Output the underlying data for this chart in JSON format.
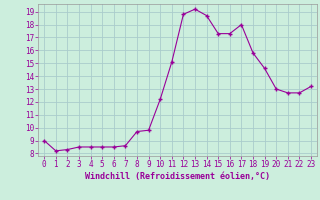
{
  "x": [
    0,
    1,
    2,
    3,
    4,
    5,
    6,
    7,
    8,
    9,
    10,
    11,
    12,
    13,
    14,
    15,
    16,
    17,
    18,
    19,
    20,
    21,
    22,
    23
  ],
  "y": [
    9.0,
    8.2,
    8.3,
    8.5,
    8.5,
    8.5,
    8.5,
    8.6,
    9.7,
    9.8,
    12.2,
    15.1,
    18.8,
    19.2,
    18.7,
    17.3,
    17.3,
    18.0,
    15.8,
    14.6,
    13.0,
    12.7,
    12.7,
    13.2
  ],
  "line_color": "#990099",
  "marker": "+",
  "marker_size": 3,
  "marker_lw": 1.0,
  "bg_color": "#cceedd",
  "grid_color": "#aacccc",
  "xlabel": "Windchill (Refroidissement éolien,°C)",
  "xlabel_color": "#990099",
  "tick_color": "#990099",
  "spine_color": "#999999",
  "xlim_min": -0.5,
  "xlim_max": 23.5,
  "ylim_min": 7.8,
  "ylim_max": 19.6,
  "yticks": [
    8,
    9,
    10,
    11,
    12,
    13,
    14,
    15,
    16,
    17,
    18,
    19
  ],
  "xticks": [
    0,
    1,
    2,
    3,
    4,
    5,
    6,
    7,
    8,
    9,
    10,
    11,
    12,
    13,
    14,
    15,
    16,
    17,
    18,
    19,
    20,
    21,
    22,
    23
  ],
  "tick_fontsize": 5.5,
  "xlabel_fontsize": 6.0,
  "linewidth": 0.8
}
